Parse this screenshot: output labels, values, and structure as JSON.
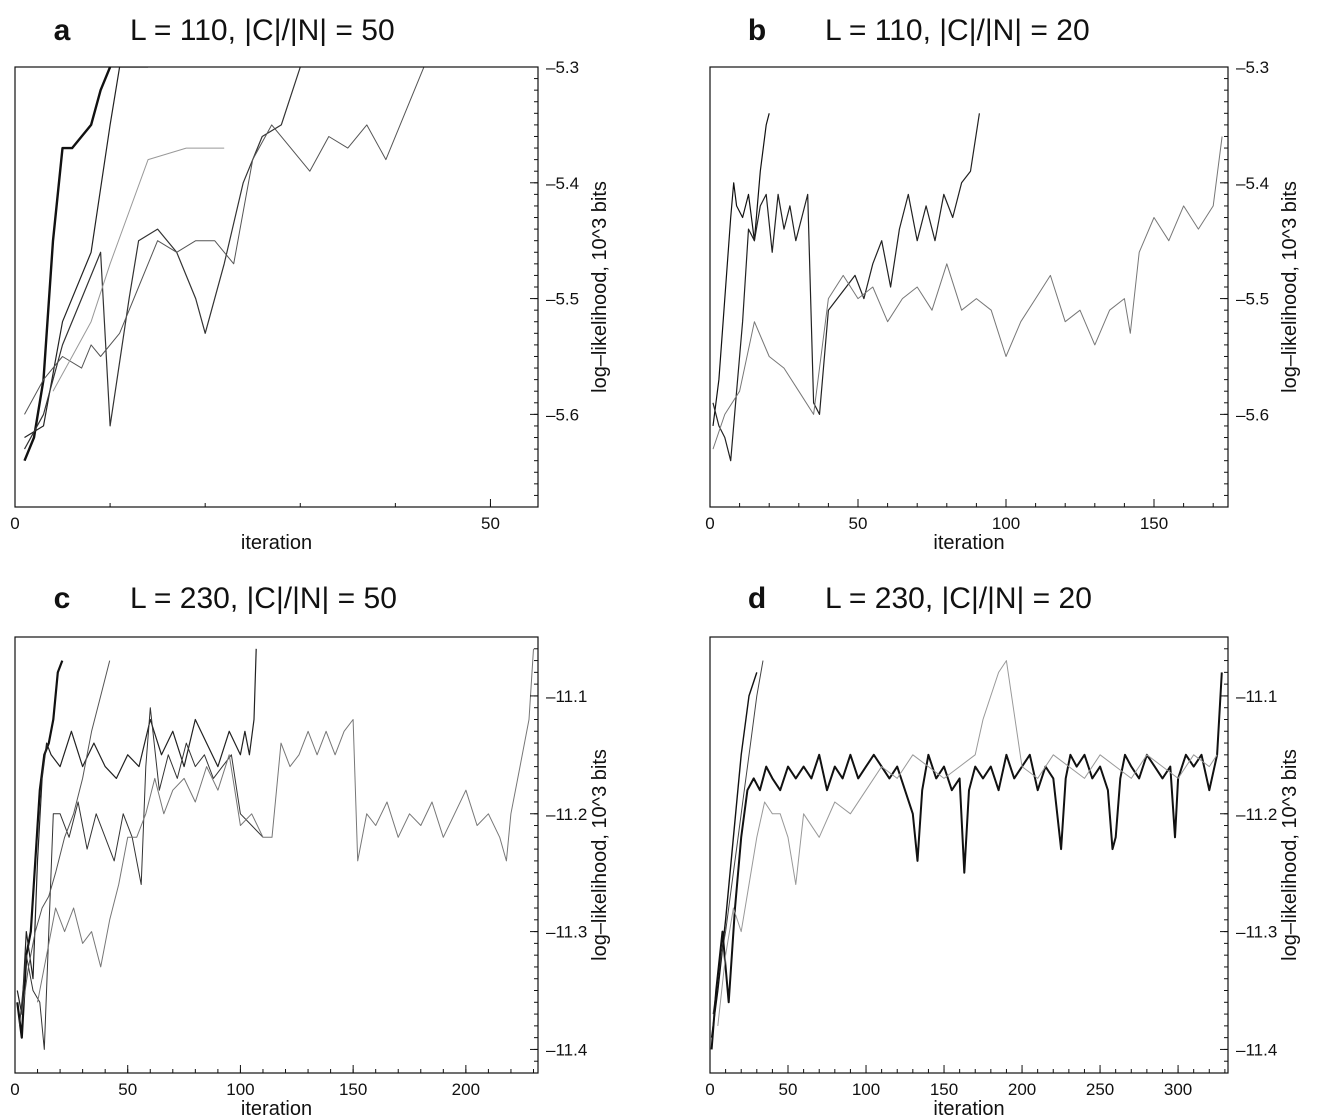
{
  "chart_data": [
    {
      "panel": "a",
      "type": "line",
      "title": "L = 110, |C|/|N| = 50",
      "xlabel": "iteration",
      "ylabel": "log–likelihood, 10^3 bits",
      "xlim": [
        0,
        55
      ],
      "ylim": [
        -5.68,
        -5.3
      ],
      "x_ticks": [
        0,
        50
      ],
      "y_ticks": [
        -5.3,
        -5.4,
        -5.5,
        -5.6
      ],
      "y_tick_labels": [
        "–5.3",
        "–5.4",
        "–5.5",
        "–5.6"
      ],
      "y_axis_side": "right",
      "grid": false,
      "series": [
        {
          "color": "#111111",
          "width": 2.4,
          "x": [
            1,
            2,
            3,
            4,
            5,
            6,
            7,
            8,
            9,
            10
          ],
          "y": [
            -5.64,
            -5.62,
            -5.57,
            -5.45,
            -5.37,
            -5.37,
            -5.36,
            -5.35,
            -5.32,
            -5.3
          ]
        },
        {
          "color": "#222222",
          "width": 1.2,
          "x": [
            1,
            3,
            5,
            8,
            10,
            11,
            12,
            13,
            14
          ],
          "y": [
            -5.62,
            -5.61,
            -5.52,
            -5.46,
            -5.35,
            -5.3,
            -5.3,
            -5.3,
            -5.3
          ]
        },
        {
          "color": "#333333",
          "width": 1.2,
          "x": [
            1,
            3,
            5,
            7,
            9,
            10,
            12,
            13,
            15,
            17,
            19,
            20,
            22,
            24,
            26,
            28,
            30
          ],
          "y": [
            -5.63,
            -5.6,
            -5.54,
            -5.5,
            -5.46,
            -5.61,
            -5.5,
            -5.45,
            -5.44,
            -5.46,
            -5.5,
            -5.53,
            -5.47,
            -5.4,
            -5.36,
            -5.35,
            -5.3
          ]
        },
        {
          "color": "#555555",
          "width": 1.0,
          "x": [
            1,
            3,
            5,
            7,
            8,
            9,
            11,
            13,
            15,
            17,
            19,
            21,
            23,
            25,
            27,
            29,
            31,
            33,
            35,
            37,
            39,
            41,
            43
          ],
          "y": [
            -5.6,
            -5.57,
            -5.55,
            -5.56,
            -5.54,
            -5.55,
            -5.53,
            -5.49,
            -5.45,
            -5.46,
            -5.45,
            -5.45,
            -5.47,
            -5.38,
            -5.35,
            -5.37,
            -5.39,
            -5.36,
            -5.37,
            -5.35,
            -5.38,
            -5.34,
            -5.3
          ]
        },
        {
          "color": "#999999",
          "width": 1.0,
          "x": [
            4,
            6,
            8,
            10,
            14,
            18,
            22
          ],
          "y": [
            -5.58,
            -5.55,
            -5.52,
            -5.47,
            -5.38,
            -5.37,
            -5.37
          ]
        }
      ]
    },
    {
      "panel": "b",
      "type": "line",
      "title": "L = 110, |C|/|N| = 20",
      "xlabel": "iteration",
      "ylabel": "log–likelihood, 10^3 bits",
      "xlim": [
        0,
        175
      ],
      "ylim": [
        -5.68,
        -5.3
      ],
      "x_ticks": [
        0,
        50,
        100,
        150
      ],
      "y_ticks": [
        -5.3,
        -5.4,
        -5.5,
        -5.6
      ],
      "y_tick_labels": [
        "–5.3",
        "–5.4",
        "–5.5",
        "–5.6"
      ],
      "y_axis_side": "right",
      "grid": false,
      "series": [
        {
          "color": "#111111",
          "width": 1.2,
          "x": [
            1,
            3,
            5,
            7,
            8,
            9,
            11,
            13,
            15,
            17,
            19,
            20
          ],
          "y": [
            -5.61,
            -5.57,
            -5.5,
            -5.43,
            -5.4,
            -5.42,
            -5.43,
            -5.41,
            -5.45,
            -5.39,
            -5.35,
            -5.34
          ]
        },
        {
          "color": "#222222",
          "width": 1.2,
          "x": [
            1,
            3,
            5,
            7,
            9,
            11,
            13,
            15,
            17,
            19,
            21,
            23,
            25,
            27,
            29,
            31,
            33,
            35,
            37,
            40,
            43,
            46,
            49,
            52,
            55,
            58,
            61,
            64,
            67,
            70,
            73,
            76,
            79,
            82,
            85,
            88,
            91
          ],
          "y": [
            -5.59,
            -5.61,
            -5.62,
            -5.64,
            -5.58,
            -5.52,
            -5.44,
            -5.45,
            -5.42,
            -5.41,
            -5.46,
            -5.41,
            -5.44,
            -5.42,
            -5.45,
            -5.43,
            -5.41,
            -5.59,
            -5.6,
            -5.51,
            -5.5,
            -5.49,
            -5.48,
            -5.5,
            -5.47,
            -5.45,
            -5.49,
            -5.44,
            -5.41,
            -5.45,
            -5.42,
            -5.45,
            -5.41,
            -5.43,
            -5.4,
            -5.39,
            -5.34
          ]
        },
        {
          "color": "#777777",
          "width": 1.0,
          "x": [
            1,
            5,
            10,
            15,
            20,
            25,
            30,
            35,
            40,
            45,
            50,
            55,
            60,
            65,
            70,
            75,
            80,
            85,
            90,
            95,
            100,
            105,
            110,
            115,
            120,
            125,
            130,
            135,
            140,
            142,
            145,
            150,
            155,
            160,
            165,
            170,
            173
          ],
          "y": [
            -5.63,
            -5.6,
            -5.58,
            -5.52,
            -5.55,
            -5.56,
            -5.58,
            -5.6,
            -5.5,
            -5.48,
            -5.5,
            -5.49,
            -5.52,
            -5.5,
            -5.49,
            -5.51,
            -5.47,
            -5.51,
            -5.5,
            -5.51,
            -5.55,
            -5.52,
            -5.5,
            -5.48,
            -5.52,
            -5.51,
            -5.54,
            -5.51,
            -5.5,
            -5.53,
            -5.46,
            -5.43,
            -5.45,
            -5.42,
            -5.44,
            -5.42,
            -5.36
          ]
        }
      ]
    },
    {
      "panel": "c",
      "type": "line",
      "title": "L = 230, |C|/|N| = 50",
      "xlabel": "iteration",
      "ylabel": "log–likelihood, 10^3 bits",
      "xlim": [
        0,
        232
      ],
      "ylim": [
        -11.42,
        -11.05
      ],
      "x_ticks": [
        0,
        50,
        100,
        150,
        200
      ],
      "y_ticks": [
        -11.1,
        -11.2,
        -11.3,
        -11.4
      ],
      "y_tick_labels": [
        "–11.1",
        "–11.2",
        "–11.3",
        "–11.4"
      ],
      "y_axis_side": "right",
      "grid": false,
      "series": [
        {
          "color": "#111111",
          "width": 2.2,
          "x": [
            1,
            3,
            5,
            7,
            9,
            11,
            13,
            15,
            17,
            19,
            21
          ],
          "y": [
            -11.36,
            -11.39,
            -11.32,
            -11.3,
            -11.24,
            -11.18,
            -11.15,
            -11.14,
            -11.12,
            -11.08,
            -11.07
          ]
        },
        {
          "color": "#222222",
          "width": 1.2,
          "x": [
            1,
            3,
            5,
            8,
            10,
            12,
            14,
            16,
            20,
            25,
            30,
            35,
            40,
            45,
            50,
            55,
            60,
            65,
            70,
            75,
            80,
            85,
            90,
            95,
            100,
            102,
            104,
            106,
            107
          ],
          "y": [
            -11.35,
            -11.37,
            -11.3,
            -11.34,
            -11.24,
            -11.17,
            -11.14,
            -11.15,
            -11.16,
            -11.13,
            -11.16,
            -11.14,
            -11.16,
            -11.17,
            -11.15,
            -11.16,
            -11.12,
            -11.15,
            -11.13,
            -11.16,
            -11.12,
            -11.14,
            -11.16,
            -11.13,
            -11.15,
            -11.13,
            -11.15,
            -11.12,
            -11.06
          ]
        },
        {
          "color": "#333333",
          "width": 1.0,
          "x": [
            2,
            5,
            8,
            11,
            13,
            15,
            17,
            20,
            24,
            28,
            32,
            36,
            40,
            44,
            48,
            52,
            56,
            58,
            60,
            64,
            68,
            72,
            76,
            80,
            84,
            88,
            92,
            96,
            100,
            105,
            110
          ],
          "y": [
            -11.38,
            -11.32,
            -11.35,
            -11.36,
            -11.4,
            -11.3,
            -11.2,
            -11.2,
            -11.22,
            -11.19,
            -11.23,
            -11.2,
            -11.22,
            -11.24,
            -11.2,
            -11.22,
            -11.26,
            -11.16,
            -11.11,
            -11.18,
            -11.15,
            -11.17,
            -11.14,
            -11.16,
            -11.15,
            -11.17,
            -11.16,
            -11.15,
            -11.2,
            -11.21,
            -11.22
          ]
        },
        {
          "color": "#555555",
          "width": 1.0,
          "x": [
            3,
            6,
            9,
            12,
            15,
            18,
            22,
            26,
            30,
            34,
            38,
            42
          ],
          "y": [
            -11.37,
            -11.33,
            -11.3,
            -11.28,
            -11.27,
            -11.25,
            -11.22,
            -11.2,
            -11.17,
            -11.13,
            -11.1,
            -11.07
          ]
        },
        {
          "color": "#777777",
          "width": 1.0,
          "x": [
            10,
            14,
            18,
            22,
            26,
            30,
            34,
            38,
            42,
            46,
            50,
            54,
            58,
            62,
            66,
            70,
            75,
            80,
            85,
            90,
            95,
            100,
            105,
            110,
            114,
            118,
            122,
            126,
            130,
            134,
            138,
            142,
            146,
            150,
            152,
            156,
            160,
            165,
            170,
            175,
            180,
            185,
            190,
            195,
            200,
            205,
            210,
            215,
            218,
            220,
            224,
            228,
            230
          ],
          "y": [
            -11.36,
            -11.32,
            -11.28,
            -11.3,
            -11.28,
            -11.31,
            -11.3,
            -11.33,
            -11.29,
            -11.26,
            -11.22,
            -11.22,
            -11.2,
            -11.17,
            -11.2,
            -11.18,
            -11.17,
            -11.19,
            -11.16,
            -11.18,
            -11.15,
            -11.21,
            -11.2,
            -11.22,
            -11.22,
            -11.14,
            -11.16,
            -11.15,
            -11.13,
            -11.15,
            -11.13,
            -11.15,
            -11.13,
            -11.12,
            -11.24,
            -11.2,
            -11.21,
            -11.19,
            -11.22,
            -11.2,
            -11.21,
            -11.19,
            -11.22,
            -11.2,
            -11.18,
            -11.21,
            -11.2,
            -11.22,
            -11.24,
            -11.2,
            -11.16,
            -11.12,
            -11.06
          ]
        }
      ]
    },
    {
      "panel": "d",
      "type": "line",
      "title": "L = 230, |C|/|N| = 20",
      "xlabel": "iteration",
      "ylabel": "log–likelihood, 10^3 bits",
      "xlim": [
        0,
        332
      ],
      "ylim": [
        -11.42,
        -11.05
      ],
      "x_ticks": [
        0,
        50,
        100,
        150,
        200,
        250,
        300
      ],
      "y_ticks": [
        -11.1,
        -11.2,
        -11.3,
        -11.4
      ],
      "y_tick_labels": [
        "–11.1",
        "–11.2",
        "–11.3",
        "–11.4"
      ],
      "y_axis_side": "right",
      "grid": false,
      "series": [
        {
          "color": "#111111",
          "width": 1.4,
          "x": [
            1,
            5,
            10,
            15,
            20,
            25,
            30
          ],
          "y": [
            -11.39,
            -11.35,
            -11.29,
            -11.22,
            -11.15,
            -11.1,
            -11.08
          ]
        },
        {
          "color": "#444444",
          "width": 1.0,
          "x": [
            2,
            6,
            10,
            14,
            18,
            22,
            26,
            30,
            34
          ],
          "y": [
            -11.37,
            -11.33,
            -11.3,
            -11.26,
            -11.22,
            -11.18,
            -11.14,
            -11.1,
            -11.07
          ]
        },
        {
          "color": "#111111",
          "width": 2.0,
          "x": [
            1,
            4,
            8,
            12,
            16,
            20,
            24,
            28,
            32,
            36,
            40,
            45,
            50,
            55,
            60,
            65,
            70,
            75,
            80,
            85,
            90,
            95,
            100,
            105,
            110,
            115,
            120,
            125,
            130,
            133,
            136,
            140,
            145,
            150,
            155,
            160,
            163,
            166,
            170,
            175,
            180,
            185,
            190,
            195,
            200,
            205,
            210,
            215,
            220,
            225,
            228,
            231,
            235,
            240,
            245,
            250,
            255,
            258,
            260,
            263,
            266,
            270,
            275,
            280,
            285,
            290,
            295,
            298,
            300,
            305,
            310,
            315,
            320,
            325,
            328
          ],
          "y": [
            -11.4,
            -11.35,
            -11.3,
            -11.36,
            -11.28,
            -11.22,
            -11.18,
            -11.17,
            -11.18,
            -11.16,
            -11.17,
            -11.18,
            -11.16,
            -11.17,
            -11.16,
            -11.17,
            -11.15,
            -11.18,
            -11.16,
            -11.17,
            -11.15,
            -11.17,
            -11.16,
            -11.15,
            -11.16,
            -11.17,
            -11.16,
            -11.18,
            -11.2,
            -11.24,
            -11.18,
            -11.15,
            -11.17,
            -11.16,
            -11.18,
            -11.17,
            -11.25,
            -11.18,
            -11.16,
            -11.17,
            -11.16,
            -11.18,
            -11.15,
            -11.17,
            -11.16,
            -11.15,
            -11.18,
            -11.16,
            -11.17,
            -11.23,
            -11.17,
            -11.15,
            -11.16,
            -11.15,
            -11.17,
            -11.16,
            -11.18,
            -11.23,
            -11.22,
            -11.17,
            -11.15,
            -11.16,
            -11.17,
            -11.15,
            -11.16,
            -11.17,
            -11.16,
            -11.22,
            -11.17,
            -11.15,
            -11.16,
            -11.15,
            -11.18,
            -11.15,
            -11.08
          ]
        },
        {
          "color": "#999999",
          "width": 1.0,
          "x": [
            5,
            10,
            15,
            20,
            25,
            30,
            35,
            40,
            45,
            50,
            55,
            60,
            70,
            80,
            90,
            100,
            110,
            120,
            130,
            140,
            150,
            160,
            170,
            175,
            180,
            185,
            190,
            200,
            210,
            220,
            230,
            240,
            250,
            260,
            270,
            280,
            290,
            300,
            310,
            320,
            325
          ],
          "y": [
            -11.38,
            -11.32,
            -11.28,
            -11.3,
            -11.26,
            -11.22,
            -11.19,
            -11.2,
            -11.2,
            -11.22,
            -11.26,
            -11.2,
            -11.22,
            -11.19,
            -11.2,
            -11.18,
            -11.16,
            -11.17,
            -11.15,
            -11.16,
            -11.17,
            -11.16,
            -11.15,
            -11.12,
            -11.1,
            -11.08,
            -11.07,
            -11.16,
            -11.17,
            -11.15,
            -11.16,
            -11.17,
            -11.15,
            -11.16,
            -11.17,
            -11.15,
            -11.16,
            -11.17,
            -11.15,
            -11.16,
            -11.15
          ]
        }
      ]
    }
  ]
}
